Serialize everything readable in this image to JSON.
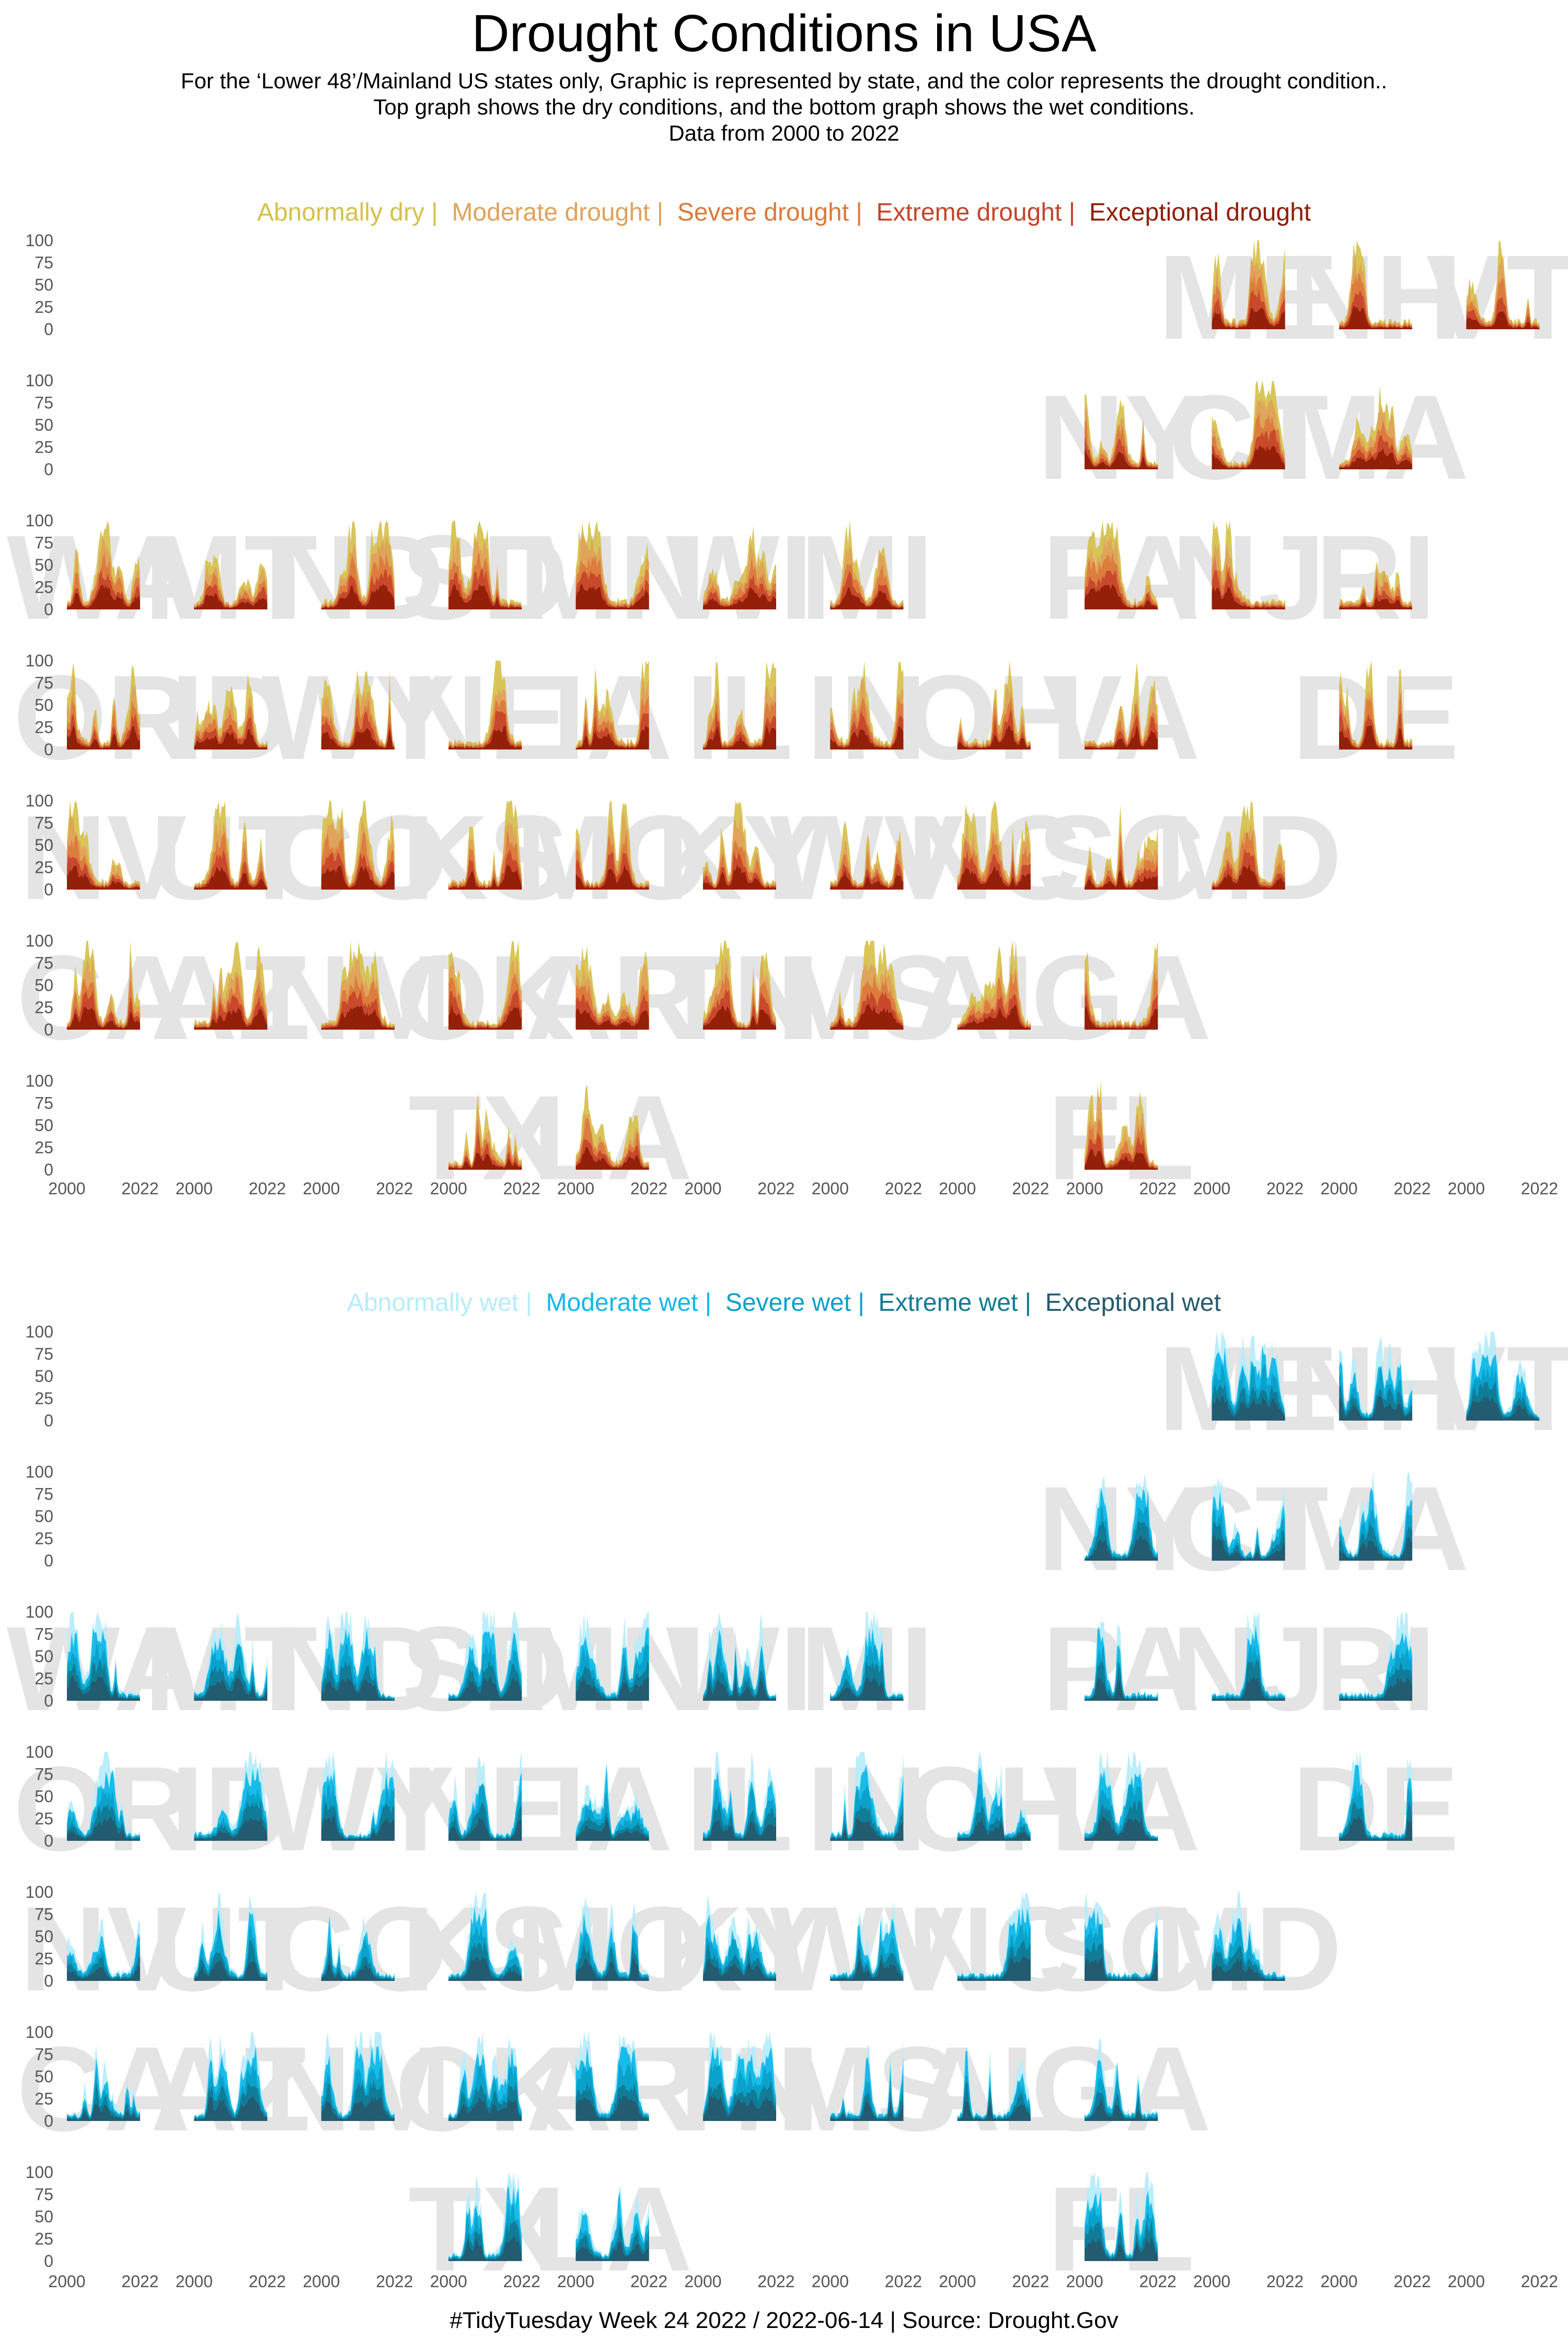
{
  "title": "Drought Conditions in USA",
  "subtitle": {
    "line1": "For the ‘Lower 48’/Mainland US states only, Graphic is represented by state, and the color represents the drought condition..",
    "line2": "Top graph shows the dry conditions, and the bottom graph shows the wet conditions.",
    "line3": "Data from 2000 to 2022"
  },
  "caption": "#TidyTuesday Week 24 2022 / 2022-06-14 | Source: Drought.Gov",
  "chart_data": [
    {
      "type": "area",
      "name": "dry",
      "legend": [
        {
          "label": "Abnormally dry",
          "color": "#d6c04b"
        },
        {
          "label": "Moderate drought",
          "color": "#e0a25a"
        },
        {
          "label": "Severe drought",
          "color": "#db7a3c"
        },
        {
          "label": "Extreme drought",
          "color": "#c5442a"
        },
        {
          "label": "Exceptional drought",
          "color": "#8f1d08"
        }
      ],
      "x_ticks": [
        "2000",
        "2022"
      ],
      "y_ticks": [
        "100",
        "75",
        "50",
        "25",
        "0"
      ],
      "ylim": [
        0,
        100
      ],
      "grid_rows": 7,
      "grid_cols": 12,
      "tiles": [
        [
          0,
          9,
          "ME"
        ],
        [
          0,
          10,
          "NH"
        ],
        [
          0,
          11,
          "VT"
        ],
        [
          1,
          8,
          "NY"
        ],
        [
          1,
          9,
          "CT"
        ],
        [
          1,
          10,
          "MA"
        ],
        [
          2,
          0,
          "WA"
        ],
        [
          2,
          1,
          "MT"
        ],
        [
          2,
          2,
          "ND"
        ],
        [
          2,
          3,
          "SD"
        ],
        [
          2,
          4,
          "MN"
        ],
        [
          2,
          5,
          "WI"
        ],
        [
          2,
          6,
          "MI"
        ],
        [
          2,
          8,
          "PA"
        ],
        [
          2,
          9,
          "NJ"
        ],
        [
          2,
          10,
          "RI"
        ],
        [
          3,
          0,
          "OR"
        ],
        [
          3,
          1,
          "ID"
        ],
        [
          3,
          2,
          "WY"
        ],
        [
          3,
          3,
          "NE"
        ],
        [
          3,
          4,
          "IA"
        ],
        [
          3,
          5,
          "IL"
        ],
        [
          3,
          6,
          "IN"
        ],
        [
          3,
          7,
          "OH"
        ],
        [
          3,
          8,
          "VA"
        ],
        [
          3,
          10,
          "DE"
        ],
        [
          4,
          0,
          "NV"
        ],
        [
          4,
          1,
          "UT"
        ],
        [
          4,
          2,
          "CO"
        ],
        [
          4,
          3,
          "KS"
        ],
        [
          4,
          4,
          "MO"
        ],
        [
          4,
          5,
          "KY"
        ],
        [
          4,
          6,
          "WV"
        ],
        [
          4,
          7,
          "NC"
        ],
        [
          4,
          8,
          "SC"
        ],
        [
          4,
          9,
          "MD"
        ],
        [
          5,
          0,
          "CA"
        ],
        [
          5,
          1,
          "AZ"
        ],
        [
          5,
          2,
          "NM"
        ],
        [
          5,
          3,
          "OK"
        ],
        [
          5,
          4,
          "AR"
        ],
        [
          5,
          5,
          "TN"
        ],
        [
          5,
          6,
          "MS"
        ],
        [
          5,
          7,
          "AL"
        ],
        [
          5,
          8,
          "GA"
        ],
        [
          6,
          3,
          "TX"
        ],
        [
          6,
          4,
          "LA"
        ],
        [
          6,
          8,
          "FL"
        ]
      ]
    },
    {
      "type": "area",
      "name": "wet",
      "legend": [
        {
          "label": "Abnormally wet",
          "color": "#b7ecfa"
        },
        {
          "label": "Moderate wet",
          "color": "#10b8e8"
        },
        {
          "label": "Severe wet",
          "color": "#0aa0c9"
        },
        {
          "label": "Extreme wet",
          "color": "#127a93"
        },
        {
          "label": "Exceptional wet",
          "color": "#255a6e"
        }
      ],
      "x_ticks": [
        "2000",
        "2022"
      ],
      "y_ticks": [
        "100",
        "75",
        "50",
        "25",
        "0"
      ],
      "ylim": [
        0,
        100
      ],
      "grid_rows": 7,
      "grid_cols": 12,
      "tiles": [
        [
          0,
          9,
          "ME"
        ],
        [
          0,
          10,
          "NH"
        ],
        [
          0,
          11,
          "VT"
        ],
        [
          1,
          8,
          "NY"
        ],
        [
          1,
          9,
          "CT"
        ],
        [
          1,
          10,
          "MA"
        ],
        [
          2,
          0,
          "WA"
        ],
        [
          2,
          1,
          "MT"
        ],
        [
          2,
          2,
          "ND"
        ],
        [
          2,
          3,
          "SD"
        ],
        [
          2,
          4,
          "MN"
        ],
        [
          2,
          5,
          "WI"
        ],
        [
          2,
          6,
          "MI"
        ],
        [
          2,
          8,
          "PA"
        ],
        [
          2,
          9,
          "NJ"
        ],
        [
          2,
          10,
          "RI"
        ],
        [
          3,
          0,
          "OR"
        ],
        [
          3,
          1,
          "ID"
        ],
        [
          3,
          2,
          "WY"
        ],
        [
          3,
          3,
          "NE"
        ],
        [
          3,
          4,
          "IA"
        ],
        [
          3,
          5,
          "IL"
        ],
        [
          3,
          6,
          "IN"
        ],
        [
          3,
          7,
          "OH"
        ],
        [
          3,
          8,
          "VA"
        ],
        [
          3,
          10,
          "DE"
        ],
        [
          4,
          0,
          "NV"
        ],
        [
          4,
          1,
          "UT"
        ],
        [
          4,
          2,
          "CO"
        ],
        [
          4,
          3,
          "KS"
        ],
        [
          4,
          4,
          "MO"
        ],
        [
          4,
          5,
          "KY"
        ],
        [
          4,
          6,
          "WV"
        ],
        [
          4,
          7,
          "NC"
        ],
        [
          4,
          8,
          "SC"
        ],
        [
          4,
          9,
          "MD"
        ],
        [
          5,
          0,
          "CA"
        ],
        [
          5,
          1,
          "AZ"
        ],
        [
          5,
          2,
          "NM"
        ],
        [
          5,
          3,
          "OK"
        ],
        [
          5,
          4,
          "AR"
        ],
        [
          5,
          5,
          "TN"
        ],
        [
          5,
          6,
          "MS"
        ],
        [
          5,
          7,
          "AL"
        ],
        [
          5,
          8,
          "GA"
        ],
        [
          6,
          3,
          "TX"
        ],
        [
          6,
          4,
          "LA"
        ],
        [
          6,
          8,
          "FL"
        ]
      ]
    }
  ]
}
